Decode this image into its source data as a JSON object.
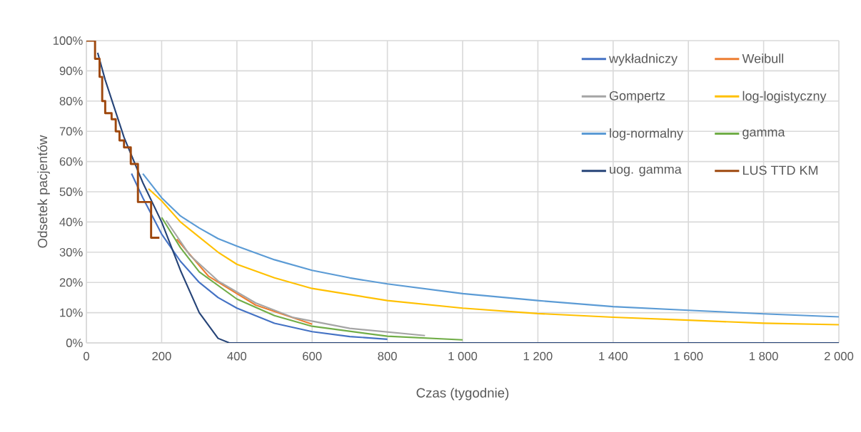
{
  "chart_data": {
    "type": "line",
    "xlabel": "Czas (tygodnie)",
    "ylabel": "Odsetek pacjentów",
    "xlim": [
      0,
      2000
    ],
    "ylim": [
      0,
      100
    ],
    "xticks": [
      0,
      200,
      400,
      600,
      800,
      {
        "value": 1000,
        "label": "1 000"
      },
      {
        "value": 1200,
        "label": "1 200"
      },
      {
        "value": 1400,
        "label": "1 400"
      },
      {
        "value": 1600,
        "label": "1 600"
      },
      {
        "value": 1800,
        "label": "1 800"
      },
      {
        "value": 2000,
        "label": "2 000"
      }
    ],
    "yticks": [
      {
        "value": 0,
        "label": "0%"
      },
      {
        "value": 10,
        "label": "10%"
      },
      {
        "value": 20,
        "label": "20%"
      },
      {
        "value": 30,
        "label": "30%"
      },
      {
        "value": 40,
        "label": "40%"
      },
      {
        "value": 50,
        "label": "50%"
      },
      {
        "value": 60,
        "label": "60%"
      },
      {
        "value": 70,
        "label": "70%"
      },
      {
        "value": 80,
        "label": "80%"
      },
      {
        "value": 90,
        "label": "90%"
      },
      {
        "value": 100,
        "label": "100%"
      }
    ],
    "grid": true,
    "legend": "top right",
    "marker": "none",
    "line_style": "solid",
    "series": [
      {
        "name": "wykładniczy",
        "color": "#4472c4",
        "x": [
          120,
          150,
          200,
          250,
          300,
          350,
          400,
          500,
          600,
          700,
          800
        ],
        "values": [
          56,
          48,
          36,
          27,
          20,
          15,
          11.5,
          6.5,
          3.7,
          2.1,
          1.2
        ]
      },
      {
        "name": "Weibull",
        "color": "#ed7d31",
        "x": [
          240,
          325,
          450,
          600
        ],
        "values": [
          34.3,
          22,
          12.5,
          6.2
        ]
      },
      {
        "name": "Gompertz",
        "color": "#a5a5a5",
        "x": [
          212,
          275,
          350,
          450,
          550,
          700,
          900
        ],
        "values": [
          40.5,
          29,
          20.5,
          13.2,
          8.4,
          4.8,
          2.4
        ]
      },
      {
        "name": "log-logistyczny",
        "color": "#ffc000",
        "x": [
          165,
          200,
          250,
          300,
          350,
          400,
          500,
          600,
          700,
          800,
          1000,
          1200,
          1400,
          1600,
          1800,
          2000
        ],
        "values": [
          51,
          47,
          40,
          35,
          30,
          26,
          21.5,
          18,
          16,
          14,
          11.5,
          9.7,
          8.5,
          7.5,
          6.5,
          6
        ]
      },
      {
        "name": "log-normalny",
        "color": "#5b9bd5",
        "x": [
          150,
          200,
          250,
          300,
          350,
          400,
          500,
          600,
          700,
          800,
          1000,
          1200,
          1400,
          1600,
          1800,
          2000
        ],
        "values": [
          56,
          48,
          42,
          38,
          34.5,
          32,
          27.5,
          24,
          21.5,
          19.5,
          16.3,
          14,
          12,
          10.8,
          9.6,
          8.6
        ]
      },
      {
        "name": "gamma",
        "color": "#70ad47",
        "x": [
          200,
          250,
          300,
          400,
          500,
          600,
          800,
          1000
        ],
        "values": [
          41.5,
          31.5,
          23.5,
          14.5,
          9,
          5.5,
          2.2,
          1
        ]
      },
      {
        "name": "uog. gamma",
        "color": "#264478",
        "x": [
          30,
          50,
          100,
          150,
          200,
          250,
          300,
          350,
          380,
          2000
        ],
        "values": [
          96,
          87,
          68,
          53,
          40,
          24,
          10,
          1.5,
          0,
          0
        ]
      },
      {
        "name": "LUS TTD KM",
        "color": "#9e480e",
        "type": "step",
        "x": [
          0,
          23,
          35,
          42,
          50,
          67,
          78,
          88,
          100,
          118,
          137,
          172,
          194
        ],
        "values": [
          100,
          94,
          88,
          80,
          76,
          74,
          70,
          67,
          64.7,
          59.2,
          46.6,
          34.8,
          34.8
        ]
      }
    ]
  }
}
